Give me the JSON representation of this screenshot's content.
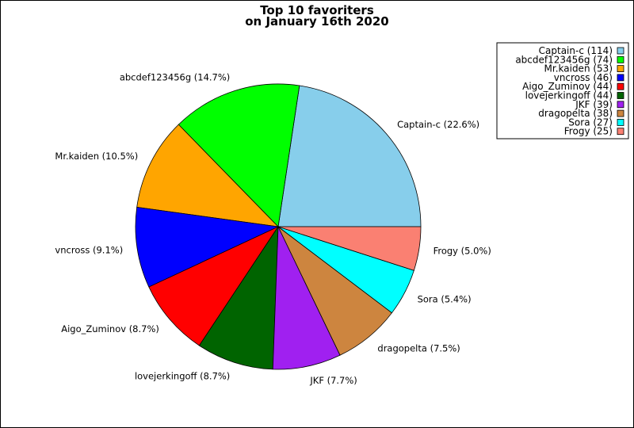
{
  "chart_data": {
    "type": "pie",
    "title": [
      "Top 10 favoriters",
      "on January 16th 2020"
    ],
    "legend_position": "top-right",
    "start_angle_deg": 0,
    "direction": "counterclockwise",
    "slices": [
      {
        "name": "Captain-c",
        "value": 114,
        "percent": "22.6%",
        "color": "#87ceeb"
      },
      {
        "name": "abcdef123456g",
        "value": 74,
        "percent": "14.7%",
        "color": "#00ff00"
      },
      {
        "name": "Mr.kaiden",
        "value": 53,
        "percent": "10.5%",
        "color": "#ffa500"
      },
      {
        "name": "vncross",
        "value": 46,
        "percent": "9.1%",
        "color": "#0000ff"
      },
      {
        "name": "Aigo_Zuminov",
        "value": 44,
        "percent": "8.7%",
        "color": "#ff0000"
      },
      {
        "name": "lovejerkingoff",
        "value": 44,
        "percent": "8.7%",
        "color": "#006400"
      },
      {
        "name": "JKF",
        "value": 39,
        "percent": "7.7%",
        "color": "#a020f0"
      },
      {
        "name": "dragopelta",
        "value": 38,
        "percent": "7.5%",
        "color": "#cd853f"
      },
      {
        "name": "Sora",
        "value": 27,
        "percent": "5.4%",
        "color": "#00ffff"
      },
      {
        "name": "Frogy",
        "value": 25,
        "percent": "5.0%",
        "color": "#fa8072"
      }
    ]
  }
}
